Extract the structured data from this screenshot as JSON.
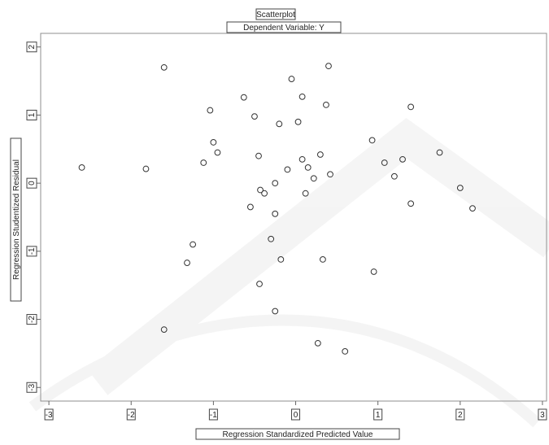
{
  "chart_data": {
    "type": "scatter",
    "title": "Scatterplot",
    "subtitle": "Dependent Variable: Y",
    "xlabel": "Regression Standardized Predicted Value",
    "ylabel": "Regression Studentized Residual",
    "xlim": [
      -3.1,
      3.05
    ],
    "ylim": [
      -3.2,
      2.2
    ],
    "x_ticks": [
      -3,
      -2,
      -1,
      0,
      1,
      2,
      3
    ],
    "x_tick_labels": [
      "-3",
      "-2",
      "-1",
      "0",
      "1",
      "2",
      "3"
    ],
    "y_ticks": [
      -3,
      -2,
      -1,
      0,
      1,
      2
    ],
    "y_tick_labels": [
      "-3",
      "-2",
      "-1",
      "0",
      "1",
      "2"
    ],
    "grid": false,
    "marker": "open-circle",
    "points": [
      {
        "x": -2.6,
        "y": 0.23
      },
      {
        "x": -1.82,
        "y": 0.21
      },
      {
        "x": -1.6,
        "y": 1.7
      },
      {
        "x": -1.04,
        "y": 1.07
      },
      {
        "x": -1.0,
        "y": 0.6
      },
      {
        "x": -0.95,
        "y": 0.45
      },
      {
        "x": -1.12,
        "y": 0.3
      },
      {
        "x": -1.25,
        "y": -0.9
      },
      {
        "x": -1.32,
        "y": -1.17
      },
      {
        "x": -1.6,
        "y": -2.15
      },
      {
        "x": -0.63,
        "y": 1.26
      },
      {
        "x": -0.5,
        "y": 0.98
      },
      {
        "x": -0.45,
        "y": 0.4
      },
      {
        "x": -0.43,
        "y": -0.1
      },
      {
        "x": -0.38,
        "y": -0.15
      },
      {
        "x": -0.55,
        "y": -0.35
      },
      {
        "x": -0.3,
        "y": -0.82
      },
      {
        "x": -0.25,
        "y": 0.0
      },
      {
        "x": -0.25,
        "y": -0.45
      },
      {
        "x": -0.2,
        "y": 0.87
      },
      {
        "x": -0.18,
        "y": -1.12
      },
      {
        "x": -0.44,
        "y": -1.48
      },
      {
        "x": -0.25,
        "y": -1.88
      },
      {
        "x": -0.05,
        "y": 1.53
      },
      {
        "x": -0.1,
        "y": 0.2
      },
      {
        "x": 0.03,
        "y": 0.9
      },
      {
        "x": 0.08,
        "y": 1.27
      },
      {
        "x": 0.08,
        "y": 0.35
      },
      {
        "x": 0.15,
        "y": 0.23
      },
      {
        "x": 0.12,
        "y": -0.15
      },
      {
        "x": 0.22,
        "y": 0.07
      },
      {
        "x": 0.3,
        "y": 0.42
      },
      {
        "x": 0.33,
        "y": -1.12
      },
      {
        "x": 0.4,
        "y": 1.72
      },
      {
        "x": 0.37,
        "y": 1.15
      },
      {
        "x": 0.42,
        "y": 0.13
      },
      {
        "x": 0.27,
        "y": -2.35
      },
      {
        "x": 0.6,
        "y": -2.47
      },
      {
        "x": 0.93,
        "y": 0.63
      },
      {
        "x": 0.95,
        "y": -1.3
      },
      {
        "x": 1.08,
        "y": 0.3
      },
      {
        "x": 1.2,
        "y": 0.1
      },
      {
        "x": 1.3,
        "y": 0.35
      },
      {
        "x": 1.4,
        "y": 1.12
      },
      {
        "x": 1.4,
        "y": -0.3
      },
      {
        "x": 1.75,
        "y": 0.45
      },
      {
        "x": 2.0,
        "y": -0.07
      },
      {
        "x": 2.15,
        "y": -0.37
      }
    ]
  }
}
